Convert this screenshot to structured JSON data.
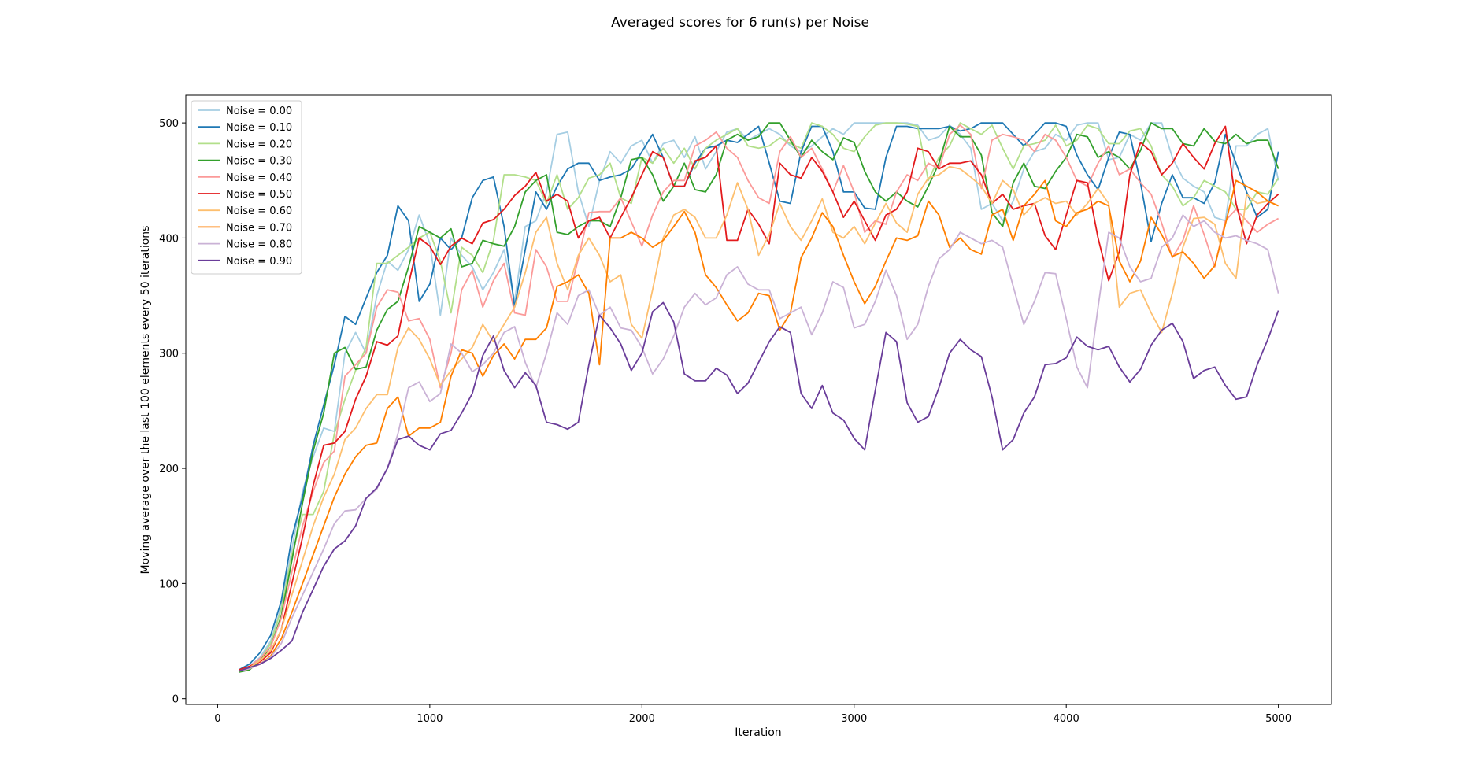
{
  "chart_data": {
    "type": "line",
    "title": "Averaged scores for 6 run(s) per Noise",
    "xlabel": "Iteration",
    "ylabel": "Moving average over the last 100 elements every 50 iterations",
    "xlim": [
      -150,
      5250
    ],
    "ylim": [
      -5,
      524
    ],
    "xticks": [
      0,
      1000,
      2000,
      3000,
      4000,
      5000
    ],
    "yticks": [
      0,
      100,
      200,
      300,
      400,
      500
    ],
    "grid": false,
    "legend_position": "top-left",
    "x": [
      100,
      150,
      200,
      250,
      300,
      350,
      400,
      450,
      500,
      550,
      600,
      650,
      700,
      750,
      800,
      850,
      900,
      950,
      1000,
      1050,
      1100,
      1150,
      1200,
      1250,
      1300,
      1350,
      1400,
      1450,
      1500,
      1550,
      1600,
      1650,
      1700,
      1750,
      1800,
      1850,
      1900,
      1950,
      2000,
      2050,
      2100,
      2150,
      2200,
      2250,
      2300,
      2350,
      2400,
      2450,
      2500,
      2550,
      2600,
      2650,
      2700,
      2750,
      2800,
      2850,
      2900,
      2950,
      3000,
      3050,
      3100,
      3150,
      3200,
      3250,
      3300,
      3350,
      3400,
      3450,
      3500,
      3550,
      3600,
      3650,
      3700,
      3750,
      3800,
      3850,
      3900,
      3950,
      4000,
      4050,
      4100,
      4150,
      4200,
      4250,
      4300,
      4350,
      4400,
      4450,
      4500,
      4550,
      4600,
      4650,
      4700,
      4750,
      4800,
      4850,
      4900,
      4950,
      5000
    ],
    "series": [
      {
        "name": "Noise = 0.00",
        "color": "#a6cee3",
        "values": [
          25,
          28,
          36,
          50,
          80,
          130,
          180,
          210,
          235,
          232,
          300,
          318,
          300,
          350,
          380,
          372,
          390,
          420,
          395,
          333,
          400,
          385,
          375,
          355,
          370,
          390,
          345,
          410,
          415,
          440,
          490,
          492,
          440,
          410,
          450,
          475,
          465,
          480,
          485,
          465,
          482,
          485,
          470,
          488,
          460,
          475,
          492,
          495,
          485,
          490,
          495,
          490,
          480,
          475,
          480,
          488,
          495,
          490,
          500,
          500,
          500,
          500,
          500,
          500,
          498,
          485,
          488,
          498,
          490,
          478,
          425,
          430,
          415,
          432,
          460,
          475,
          478,
          490,
          485,
          498,
          500,
          500,
          468,
          470,
          490,
          485,
          500,
          500,
          470,
          452,
          445,
          440,
          418,
          415,
          480,
          480,
          490,
          495,
          450
        ]
      },
      {
        "name": "Noise = 0.10",
        "color": "#1f78b4",
        "values": [
          25,
          30,
          40,
          55,
          85,
          140,
          175,
          220,
          255,
          290,
          332,
          325,
          348,
          370,
          385,
          428,
          415,
          345,
          360,
          400,
          390,
          400,
          435,
          450,
          453,
          410,
          340,
          390,
          440,
          425,
          445,
          460,
          465,
          465,
          450,
          453,
          455,
          460,
          475,
          490,
          470,
          445,
          445,
          465,
          478,
          480,
          485,
          483,
          490,
          497,
          465,
          432,
          430,
          475,
          497,
          497,
          475,
          440,
          440,
          426,
          425,
          470,
          497,
          497,
          495,
          495,
          495,
          497,
          493,
          495,
          500,
          500,
          500,
          490,
          480,
          490,
          500,
          500,
          497,
          472,
          455,
          442,
          470,
          492,
          490,
          448,
          397,
          430,
          455,
          435,
          435,
          430,
          448,
          490,
          465,
          440,
          418,
          425,
          475
        ]
      },
      {
        "name": "Noise = 0.20",
        "color": "#b2df8a",
        "values": [
          24,
          27,
          34,
          48,
          78,
          125,
          160,
          160,
          180,
          230,
          260,
          285,
          305,
          378,
          378,
          385,
          392,
          400,
          405,
          380,
          335,
          392,
          385,
          370,
          398,
          455,
          455,
          453,
          450,
          430,
          455,
          425,
          435,
          452,
          455,
          465,
          435,
          430,
          470,
          465,
          478,
          465,
          478,
          460,
          478,
          485,
          490,
          495,
          480,
          478,
          480,
          487,
          482,
          478,
          500,
          497,
          490,
          478,
          475,
          488,
          498,
          500,
          500,
          499,
          497,
          450,
          470,
          480,
          500,
          495,
          490,
          498,
          478,
          460,
          480,
          482,
          485,
          498,
          480,
          485,
          498,
          495,
          482,
          482,
          493,
          495,
          480,
          455,
          445,
          428,
          435,
          450,
          445,
          440,
          425,
          425,
          440,
          438,
          452
        ]
      },
      {
        "name": "Noise = 0.30",
        "color": "#33a02c",
        "values": [
          23,
          25,
          33,
          45,
          72,
          120,
          170,
          215,
          248,
          300,
          305,
          286,
          288,
          320,
          338,
          345,
          375,
          410,
          405,
          400,
          408,
          375,
          378,
          398,
          395,
          393,
          410,
          440,
          450,
          455,
          405,
          403,
          410,
          415,
          415,
          410,
          435,
          468,
          470,
          455,
          432,
          445,
          465,
          442,
          440,
          455,
          485,
          490,
          485,
          488,
          500,
          500,
          485,
          470,
          485,
          475,
          468,
          487,
          483,
          458,
          440,
          432,
          440,
          432,
          427,
          445,
          465,
          497,
          488,
          488,
          472,
          422,
          410,
          448,
          465,
          445,
          443,
          458,
          470,
          490,
          488,
          470,
          475,
          470,
          460,
          476,
          500,
          495,
          495,
          482,
          480,
          495,
          484,
          482,
          490,
          482,
          485,
          485,
          460
        ]
      },
      {
        "name": "Noise = 0.40",
        "color": "#fb9a99",
        "values": [
          24,
          28,
          35,
          45,
          70,
          110,
          150,
          180,
          205,
          215,
          280,
          290,
          300,
          340,
          355,
          353,
          328,
          330,
          312,
          270,
          300,
          355,
          372,
          340,
          363,
          378,
          335,
          333,
          390,
          375,
          345,
          345,
          382,
          422,
          423,
          423,
          435,
          414,
          393,
          420,
          440,
          450,
          450,
          480,
          485,
          492,
          478,
          470,
          450,
          435,
          430,
          475,
          488,
          470,
          478,
          460,
          440,
          463,
          440,
          405,
          415,
          412,
          440,
          455,
          450,
          465,
          460,
          490,
          498,
          490,
          443,
          485,
          490,
          488,
          485,
          475,
          490,
          485,
          470,
          450,
          445,
          465,
          480,
          455,
          460,
          448,
          438,
          413,
          383,
          398,
          428,
          403,
          375,
          415,
          425,
          415,
          405,
          412,
          417
        ]
      },
      {
        "name": "Noise = 0.50",
        "color": "#e31a1c",
        "values": [
          25,
          28,
          32,
          40,
          60,
          100,
          140,
          185,
          220,
          222,
          232,
          260,
          280,
          310,
          307,
          315,
          360,
          400,
          393,
          377,
          393,
          400,
          395,
          413,
          416,
          425,
          437,
          445,
          457,
          432,
          438,
          432,
          400,
          415,
          418,
          400,
          418,
          435,
          455,
          475,
          470,
          445,
          445,
          467,
          470,
          480,
          398,
          398,
          425,
          412,
          395,
          465,
          455,
          452,
          470,
          458,
          440,
          418,
          432,
          415,
          398,
          420,
          425,
          440,
          478,
          475,
          460,
          465,
          465,
          467,
          455,
          430,
          438,
          425,
          428,
          430,
          402,
          390,
          420,
          450,
          448,
          400,
          363,
          388,
          455,
          483,
          475,
          455,
          465,
          482,
          470,
          460,
          482,
          497,
          430,
          395,
          420,
          430,
          438
        ]
      },
      {
        "name": "Noise = 0.60",
        "color": "#fdbf6f",
        "values": [
          24,
          27,
          33,
          42,
          60,
          90,
          120,
          150,
          175,
          195,
          225,
          235,
          252,
          264,
          264,
          305,
          322,
          312,
          295,
          272,
          285,
          295,
          305,
          325,
          310,
          325,
          340,
          370,
          405,
          418,
          378,
          355,
          385,
          400,
          385,
          362,
          368,
          325,
          313,
          355,
          400,
          420,
          425,
          418,
          400,
          400,
          420,
          448,
          425,
          385,
          403,
          430,
          410,
          398,
          415,
          434,
          405,
          400,
          410,
          395,
          413,
          430,
          413,
          405,
          438,
          452,
          455,
          462,
          460,
          453,
          445,
          430,
          450,
          442,
          420,
          430,
          435,
          430,
          432,
          420,
          430,
          443,
          430,
          340,
          352,
          355,
          335,
          318,
          352,
          392,
          417,
          418,
          412,
          378,
          365,
          438,
          430,
          432,
          428
        ]
      },
      {
        "name": "Noise = 0.70",
        "color": "#ff7f00",
        "values": [
          24,
          26,
          30,
          37,
          52,
          75,
          100,
          125,
          150,
          175,
          195,
          210,
          220,
          222,
          252,
          262,
          228,
          235,
          235,
          240,
          280,
          303,
          300,
          280,
          298,
          308,
          295,
          312,
          312,
          322,
          358,
          362,
          368,
          352,
          290,
          400,
          400,
          405,
          400,
          392,
          398,
          410,
          423,
          405,
          368,
          357,
          342,
          328,
          335,
          352,
          350,
          320,
          335,
          383,
          400,
          422,
          410,
          385,
          362,
          343,
          358,
          380,
          400,
          398,
          402,
          432,
          420,
          392,
          400,
          390,
          386,
          420,
          425,
          398,
          428,
          438,
          450,
          415,
          410,
          422,
          425,
          432,
          428,
          380,
          362,
          380,
          418,
          403,
          384,
          388,
          378,
          365,
          376,
          412,
          450,
          445,
          440,
          432,
          428
        ]
      },
      {
        "name": "Noise = 0.80",
        "color": "#cab2d6",
        "values": [
          24,
          26,
          30,
          36,
          48,
          70,
          90,
          110,
          130,
          152,
          163,
          164,
          174,
          182,
          200,
          230,
          270,
          275,
          258,
          265,
          308,
          300,
          284,
          290,
          300,
          318,
          323,
          292,
          270,
          300,
          335,
          325,
          350,
          355,
          333,
          340,
          322,
          320,
          305,
          282,
          295,
          315,
          340,
          352,
          342,
          348,
          368,
          375,
          360,
          355,
          355,
          330,
          335,
          340,
          316,
          335,
          362,
          357,
          322,
          325,
          345,
          372,
          350,
          312,
          325,
          358,
          382,
          390,
          405,
          400,
          395,
          398,
          392,
          358,
          325,
          345,
          370,
          369,
          330,
          288,
          270,
          340,
          405,
          400,
          375,
          362,
          365,
          392,
          400,
          420,
          410,
          415,
          405,
          400,
          402,
          398,
          395,
          390,
          352
        ]
      },
      {
        "name": "Noise = 0.90",
        "color": "#6a3d9a",
        "values": [
          24,
          27,
          30,
          35,
          42,
          50,
          75,
          95,
          115,
          130,
          137,
          150,
          174,
          183,
          200,
          225,
          228,
          220,
          216,
          230,
          233,
          248,
          265,
          298,
          315,
          285,
          270,
          283,
          272,
          240,
          238,
          234,
          240,
          290,
          333,
          322,
          308,
          285,
          300,
          336,
          344,
          327,
          282,
          276,
          276,
          287,
          281,
          265,
          274,
          292,
          310,
          323,
          318,
          265,
          252,
          272,
          248,
          242,
          226,
          216,
          268,
          318,
          310,
          257,
          240,
          245,
          270,
          300,
          312,
          303,
          297,
          262,
          216,
          225,
          248,
          262,
          290,
          291,
          296,
          314,
          306,
          303,
          306,
          288,
          275,
          286,
          307,
          320,
          326,
          310,
          278,
          285,
          288,
          272,
          260,
          262,
          290,
          312,
          337
        ]
      }
    ]
  }
}
